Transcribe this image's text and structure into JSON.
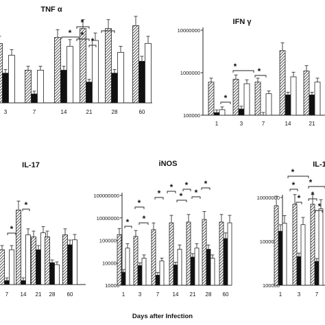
{
  "chart_data": [
    {
      "type": "bar",
      "title": "TNF α",
      "categories": [
        "3",
        "7",
        "14",
        "21",
        "28",
        "60"
      ],
      "series": [
        {
          "values": [
            1.0,
            0.55,
            1.1,
            1.25,
            1.25,
            1.3
          ]
        },
        {
          "values": [
            0.5,
            0.15,
            0.55,
            0.35,
            0.5,
            0.7
          ]
        },
        {
          "values": [
            0.8,
            0.55,
            0.95,
            1.05,
            0.85,
            1.0
          ]
        }
      ],
      "annotations": [
        "*",
        "*",
        "*",
        "*"
      ]
    },
    {
      "type": "bar",
      "title": "IFN γ",
      "ylog": true,
      "yticks": [
        "100000",
        "1000000",
        "10000000"
      ],
      "ylim": [
        100000,
        10000000
      ],
      "categories": [
        "1",
        "3",
        "7",
        "14",
        "21"
      ],
      "series": [
        {
          "values": [
            600000,
            700000,
            600000,
            3300000,
            1100000
          ]
        },
        {
          "values": [
            115000,
            140000,
            100000,
            300000,
            300000
          ]
        },
        {
          "values": [
            135000,
            550000,
            320000,
            800000,
            600000
          ]
        }
      ],
      "annotations": [
        "*",
        "*",
        "*"
      ]
    },
    {
      "type": "bar",
      "title": "IL-17",
      "categories": [
        "7",
        "14",
        "21",
        "28",
        "60"
      ],
      "series": [
        {
          "values": [
            0.35,
            0.75,
            0.48,
            0.48,
            0.5
          ]
        },
        {
          "values": [
            0.04,
            0.04,
            0.35,
            0.22,
            0.4
          ]
        },
        {
          "values": [
            0.35,
            0.5,
            0.52,
            0.2,
            0.45
          ]
        }
      ],
      "annotations": [
        "*",
        "*"
      ]
    },
    {
      "type": "bar",
      "title": "iNOS",
      "ylog": true,
      "yticks": [
        "10000",
        "100000",
        "1000000",
        "10000000",
        "100000000"
      ],
      "ylim": [
        10000,
        100000000
      ],
      "categories": [
        "1",
        "3",
        "7",
        "14",
        "21",
        "28",
        "60"
      ],
      "series": [
        {
          "values": [
            1800000,
            1500000,
            3000000,
            6000000,
            6500000,
            8500000,
            6500000
          ]
        },
        {
          "values": [
            38000,
            75000,
            28000,
            80000,
            180000,
            400000,
            1200000
          ]
        },
        {
          "values": [
            450000,
            160000,
            120000,
            400000,
            450000,
            160000,
            6000000
          ]
        }
      ],
      "annotations": [
        "*",
        "*",
        "*",
        "*",
        "*",
        "*",
        "*",
        "*",
        "*"
      ]
    },
    {
      "type": "bar",
      "title": "IL-1",
      "ylog": true,
      "yticks": [
        "10000000",
        "1000000",
        "100000"
      ],
      "ylim": [
        100000,
        10000000
      ],
      "categories": [
        "1",
        "3",
        "7"
      ],
      "series": [
        {
          "values": [
            6500000,
            7000000,
            7000000
          ]
        },
        {
          "values": [
            1700000,
            450000,
            350000
          ]
        },
        {
          "values": [
            2600000,
            2400000,
            5500000
          ]
        }
      ],
      "annotations": [
        "*",
        "*",
        "*",
        "*",
        "*",
        "*"
      ]
    }
  ],
  "xlabel": "Days after Infection"
}
